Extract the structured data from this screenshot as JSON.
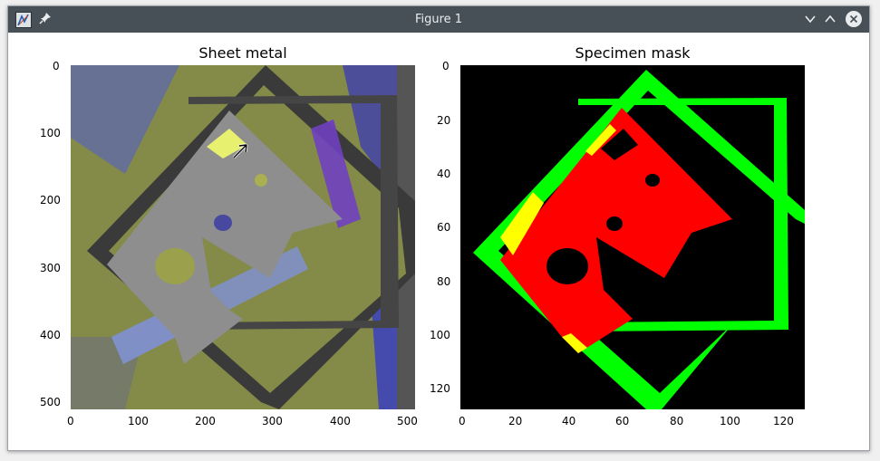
{
  "window": {
    "title": "Figure 1"
  },
  "titlebar": {
    "app_icon": "matplotlib-icon",
    "pin_icon": "pin-icon",
    "minimize_icon": "chevron-down-icon",
    "maximize_icon": "chevron-up-icon",
    "close_icon": "close-icon"
  },
  "plots": [
    {
      "title": "Sheet metal",
      "yticks": [
        "0",
        "100",
        "200",
        "300",
        "400",
        "500"
      ],
      "xticks": [
        "0",
        "100",
        "200",
        "300",
        "400",
        "500"
      ]
    },
    {
      "title": "Specimen mask",
      "yticks": [
        "0",
        "20",
        "40",
        "60",
        "80",
        "100",
        "120"
      ],
      "xticks": [
        "0",
        "20",
        "40",
        "60",
        "80",
        "100",
        "120"
      ],
      "colors": {
        "background": "#000000",
        "specimen": "#ff0000",
        "frame": "#00ff00",
        "overlap": "#ffff00"
      }
    }
  ]
}
